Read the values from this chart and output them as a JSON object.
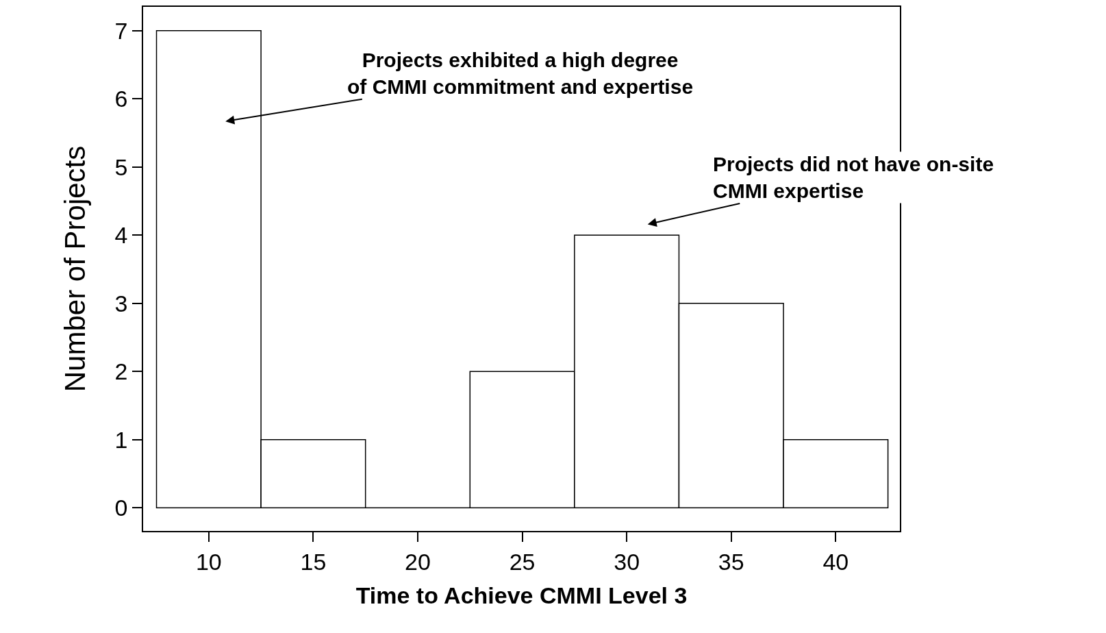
{
  "chart_data": {
    "type": "histogram",
    "xlabel": "Time to Achieve CMMI Level 3",
    "ylabel": "Number of Projects",
    "bins": [
      7.5,
      12.5,
      17.5,
      22.5,
      27.5,
      32.5,
      37.5,
      42.5
    ],
    "values": [
      7,
      1,
      0,
      2,
      4,
      3,
      1
    ],
    "xlim": [
      6.86,
      43.07
    ],
    "xticks": [
      10,
      15,
      20,
      25,
      30,
      35,
      40
    ],
    "ylim": [
      -0.34,
      7.35
    ],
    "yticks": [
      0,
      1,
      2,
      3,
      4,
      5,
      6,
      7
    ],
    "grid": false,
    "annotations": [
      "Projects exhibited a high degree\nof CMMI commitment and expertise",
      "Projects did not have on-site\nCMMI expertise"
    ]
  }
}
